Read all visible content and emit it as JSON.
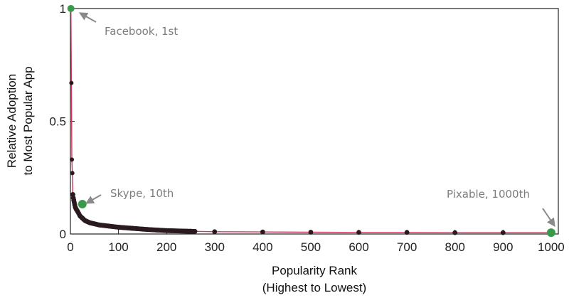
{
  "chart_data": {
    "type": "scatter",
    "xlabel": [
      "Popularity Rank",
      "(Highest to Lowest)"
    ],
    "ylabel": [
      "Relative Adoption",
      "to Most Popular App"
    ],
    "xlim": [
      0,
      1015
    ],
    "ylim": [
      0,
      1
    ],
    "x_ticks": [
      0,
      100,
      200,
      300,
      400,
      500,
      600,
      700,
      800,
      900,
      1000
    ],
    "y_ticks": [
      {
        "value": 0,
        "label": "0"
      },
      {
        "value": 0.5,
        "label": "0.5"
      },
      {
        "value": 1,
        "label": "1"
      }
    ],
    "grid": false,
    "colors": {
      "points": "#2a1a1f",
      "fit_line": "#d2365c",
      "highlight": "#3a9a4a",
      "annotation": "#8a8a8a"
    },
    "points": [
      {
        "x": 1,
        "y": 1.0
      },
      {
        "x": 2,
        "y": 0.67
      },
      {
        "x": 3,
        "y": 0.33
      },
      {
        "x": 4,
        "y": 0.27
      },
      {
        "x": 5,
        "y": 0.175
      },
      {
        "x": 6,
        "y": 0.16
      },
      {
        "x": 7,
        "y": 0.15
      },
      {
        "x": 8,
        "y": 0.14
      },
      {
        "x": 9,
        "y": 0.13
      },
      {
        "x": 10,
        "y": 0.12
      },
      {
        "x": 12,
        "y": 0.11
      },
      {
        "x": 15,
        "y": 0.1
      },
      {
        "x": 20,
        "y": 0.08
      },
      {
        "x": 25,
        "y": 0.07
      },
      {
        "x": 30,
        "y": 0.06
      },
      {
        "x": 40,
        "y": 0.05
      },
      {
        "x": 50,
        "y": 0.045
      },
      {
        "x": 60,
        "y": 0.04
      },
      {
        "x": 80,
        "y": 0.035
      },
      {
        "x": 100,
        "y": 0.03
      },
      {
        "x": 130,
        "y": 0.025
      },
      {
        "x": 160,
        "y": 0.02
      },
      {
        "x": 200,
        "y": 0.015
      },
      {
        "x": 250,
        "y": 0.012
      },
      {
        "x": 300,
        "y": 0.01
      },
      {
        "x": 400,
        "y": 0.009
      },
      {
        "x": 500,
        "y": 0.008
      },
      {
        "x": 600,
        "y": 0.007
      },
      {
        "x": 700,
        "y": 0.007
      },
      {
        "x": 800,
        "y": 0.006
      },
      {
        "x": 900,
        "y": 0.006
      },
      {
        "x": 1000,
        "y": 0.006
      }
    ],
    "highlights": [
      {
        "x": 1,
        "y": 1.0,
        "label": "Facebook, 1st"
      },
      {
        "x": 10,
        "y": 0.12,
        "label": "Skype, 10th"
      },
      {
        "x": 1000,
        "y": 0.006,
        "label": "Pixable, 1000th"
      }
    ]
  }
}
